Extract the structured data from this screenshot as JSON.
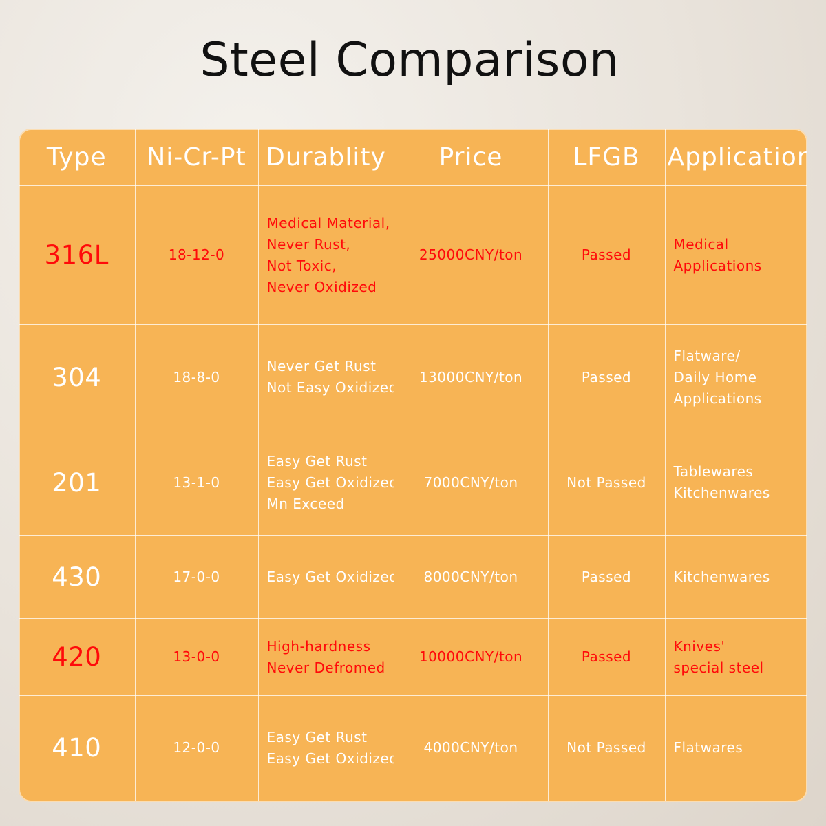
{
  "title": "Steel Comparison",
  "headers": [
    "Type",
    "Ni-Cr-Pt",
    "Durablity",
    "Price",
    "LFGB",
    "Application"
  ],
  "rows": [
    {
      "type": "316L",
      "nicrpt": "18-12-0",
      "durability": [
        "Medical Material,",
        "Never Rust,",
        "Not Toxic,",
        "Never Oxidized"
      ],
      "price": "25000CNY/ton",
      "lfgb": "Passed",
      "application": [
        "Medical",
        "Applications"
      ],
      "highlight": true
    },
    {
      "type": "304",
      "nicrpt": "18-8-0",
      "durability": [
        "Never Get Rust",
        "Not Easy Oxidized"
      ],
      "price": "13000CNY/ton",
      "lfgb": "Passed",
      "application": [
        "Flatware/",
        "Daily Home",
        "Applications"
      ],
      "highlight": false
    },
    {
      "type": "201",
      "nicrpt": "13-1-0",
      "durability": [
        "Easy Get Rust",
        "Easy Get Oxidized",
        "Mn Exceed"
      ],
      "price": "7000CNY/ton",
      "lfgb": "Not Passed",
      "application": [
        "Tablewares",
        "Kitchenwares"
      ],
      "highlight": false
    },
    {
      "type": "430",
      "nicrpt": "17-0-0",
      "durability": [
        "Easy Get Oxidized"
      ],
      "price": "8000CNY/ton",
      "lfgb": "Passed",
      "application": [
        "Kitchenwares"
      ],
      "highlight": false
    },
    {
      "type": "420",
      "nicrpt": "13-0-0",
      "durability": [
        "High-hardness",
        "Never Defromed"
      ],
      "price": "10000CNY/ton",
      "lfgb": "Passed",
      "application": [
        "Knives'",
        "special steel"
      ],
      "highlight": true
    },
    {
      "type": "410",
      "nicrpt": "12-0-0",
      "durability": [
        "Easy Get Rust",
        "Easy Get Oxidized"
      ],
      "price": "4000CNY/ton",
      "lfgb": "Not Passed",
      "application": [
        "Flatwares"
      ],
      "highlight": false
    }
  ],
  "colors": {
    "table_bg": "#f7b455",
    "highlight_text": "#ff0a0a",
    "normal_text": "#ffffff",
    "title_text": "#111111"
  }
}
